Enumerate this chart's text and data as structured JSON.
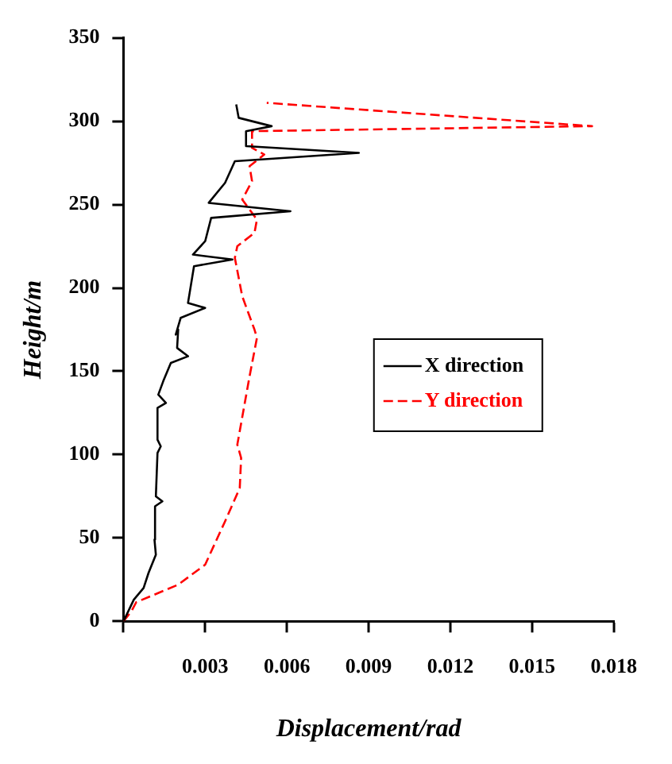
{
  "chart_data": {
    "type": "line",
    "xlabel": "Displacement/rad",
    "ylabel": "Height/m",
    "xlim": [
      0,
      0.018
    ],
    "ylim": [
      0,
      350
    ],
    "xticks": [
      {
        "value": 0,
        "label": null
      },
      0.003,
      0.006,
      0.009,
      0.012,
      0.015,
      0.018
    ],
    "yticks": [
      0,
      50,
      100,
      150,
      200,
      250,
      300,
      350
    ],
    "grid": false,
    "legend": "right",
    "marker": "none",
    "series": [
      {
        "name": "X direction",
        "color": "#000000",
        "line_style": "solid",
        "x": [
          0,
          0.00038,
          0.00074,
          0.00092,
          0.00119,
          0.00114,
          0.00116,
          0.00143,
          0.00119,
          0.00125,
          0.00137,
          0.00125,
          0.00125,
          0.00156,
          0.00128,
          0.00146,
          0.00174,
          0.00237,
          0.00197,
          0.00201,
          0.00192,
          0.0021,
          0.003,
          0.00237,
          0.00259,
          0.004,
          0.00255,
          0.003,
          0.00322,
          0.00613,
          0.00313,
          0.00373,
          0.00409,
          0.00864,
          0.0045,
          0.0045,
          0.00544,
          0.00423,
          0.00414
        ],
        "values": [
          0,
          13,
          20,
          29,
          40,
          49,
          69,
          72,
          75,
          101,
          105,
          109,
          128,
          131,
          136,
          144,
          155,
          159,
          164,
          175,
          172,
          182,
          188,
          191,
          213,
          217,
          220,
          228,
          242,
          246,
          251,
          263,
          276,
          281,
          285,
          294,
          297,
          302,
          310
        ]
      },
      {
        "name": "Y direction",
        "color": "#ff0000",
        "line_style": "dashed",
        "x": [
          0,
          0.00029,
          0.00047,
          0.00201,
          0.003,
          0.00373,
          0.00427,
          0.00432,
          0.00418,
          0.00463,
          0.0049,
          0.00481,
          0.00436,
          0.00409,
          0.00418,
          0.00481,
          0.0049,
          0.00436,
          0.00472,
          0.00463,
          0.00517,
          0.00472,
          0.00472,
          0.0172,
          0.00526
        ],
        "values": [
          0,
          6,
          11.5,
          22,
          34,
          60,
          80,
          98,
          106,
          147,
          170,
          175,
          195,
          218,
          225,
          233,
          241,
          253,
          264,
          273,
          280,
          284,
          294,
          297,
          311
        ]
      }
    ]
  }
}
